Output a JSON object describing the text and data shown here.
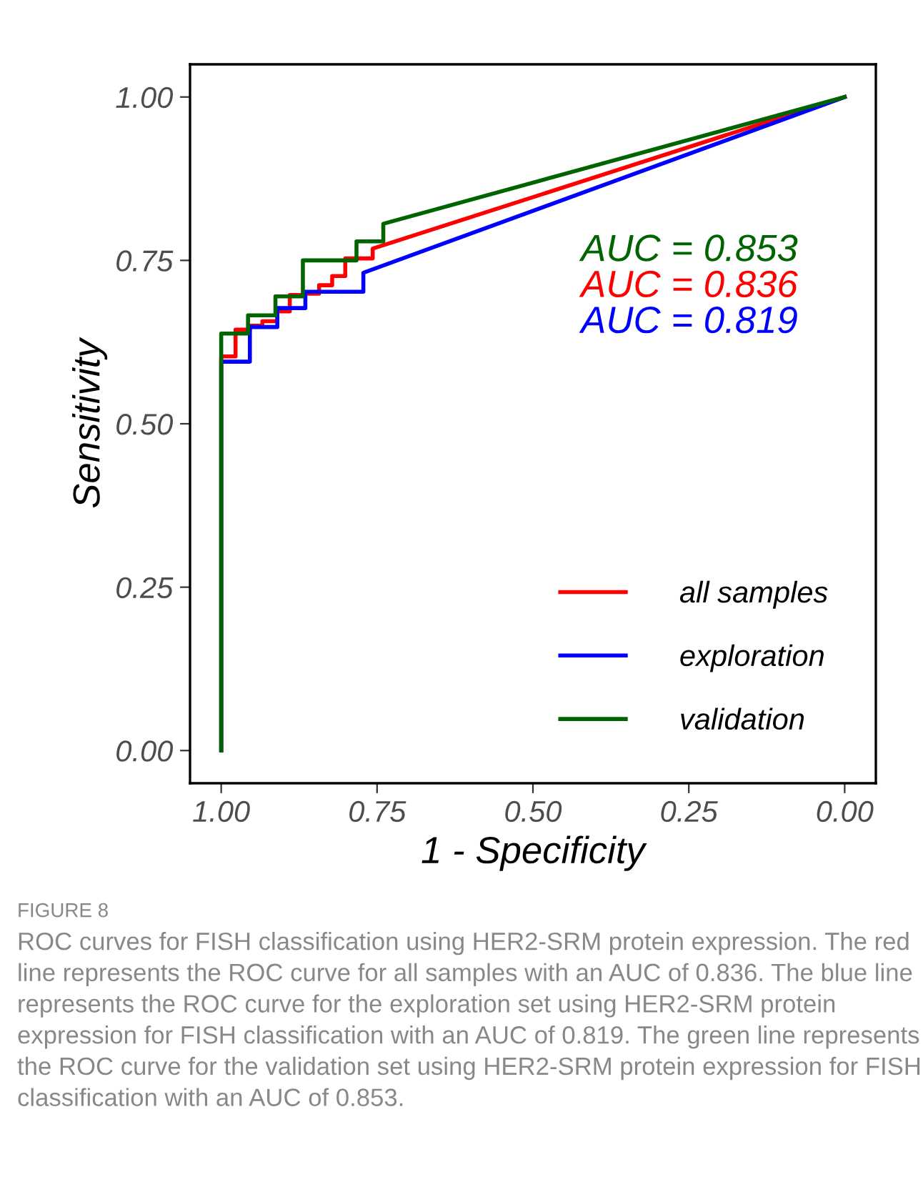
{
  "chart_data": {
    "type": "line",
    "xlabel": "1 - Specificity",
    "ylabel": "Sensitivity",
    "xlim": [
      1.05,
      -0.05
    ],
    "ylim": [
      -0.05,
      1.05
    ],
    "xticks": [
      {
        "value": 1,
        "label": "1.00"
      },
      {
        "value": 0.75,
        "label": "0.75"
      },
      {
        "value": 0.5,
        "label": "0.50"
      },
      {
        "value": 0.25,
        "label": "0.25"
      },
      {
        "value": 0,
        "label": "0.00"
      }
    ],
    "yticks": [
      {
        "value": 0,
        "label": "0.00"
      },
      {
        "value": 0.25,
        "label": "0.25"
      },
      {
        "value": 0.5,
        "label": "0.50"
      },
      {
        "value": 0.75,
        "label": "0.75"
      },
      {
        "value": 1,
        "label": "1.00"
      }
    ],
    "grid": false,
    "legend": "bottom right",
    "marker": "none",
    "line_style": "solid",
    "series": [
      {
        "name": "all samples",
        "color": "#ff0000",
        "x": [
          1.0,
          1.0,
          0.977,
          0.977,
          0.954,
          0.954,
          0.934,
          0.934,
          0.91,
          0.91,
          0.89,
          0.89,
          0.867,
          0.867,
          0.843,
          0.843,
          0.822,
          0.822,
          0.801,
          0.801,
          0.757,
          0.757,
          0.0
        ],
        "values": [
          0.0,
          0.603,
          0.603,
          0.644,
          0.644,
          0.65,
          0.65,
          0.657,
          0.657,
          0.672,
          0.672,
          0.697,
          0.697,
          0.699,
          0.699,
          0.712,
          0.712,
          0.726,
          0.726,
          0.753,
          0.753,
          0.768,
          1.0
        ]
      },
      {
        "name": "exploration",
        "color": "#0000ff",
        "x": [
          1.0,
          1.0,
          0.954,
          0.954,
          0.91,
          0.91,
          0.865,
          0.865,
          0.772,
          0.772,
          0.0
        ],
        "values": [
          0.0,
          0.595,
          0.595,
          0.648,
          0.648,
          0.677,
          0.677,
          0.702,
          0.702,
          0.731,
          1.0
        ]
      },
      {
        "name": "validation",
        "color": "#006400",
        "x": [
          1.0,
          1.0,
          0.957,
          0.957,
          0.913,
          0.913,
          0.869,
          0.869,
          0.783,
          0.783,
          0.74,
          0.74,
          0.0
        ],
        "values": [
          0.0,
          0.638,
          0.638,
          0.666,
          0.666,
          0.695,
          0.695,
          0.75,
          0.75,
          0.779,
          0.779,
          0.806,
          1.0
        ]
      }
    ],
    "annotations": [
      "AUC = 0.853",
      "AUC = 0.836",
      "AUC = 0.819",
      "FIGURE 8",
      "ROC curves for FISH classification using HER2-SRM protein expression. The red line represents the ROC curve for all samples with an AUC of 0.836. The blue line represents the ROC curve for the exploration set using HER2-SRM protein expression for FISH classification with an AUC of 0.819. The green line represents the ROC curve for the validation set using HER2-SRM protein expression for FISH classification with an AUC of 0.853."
    ]
  }
}
